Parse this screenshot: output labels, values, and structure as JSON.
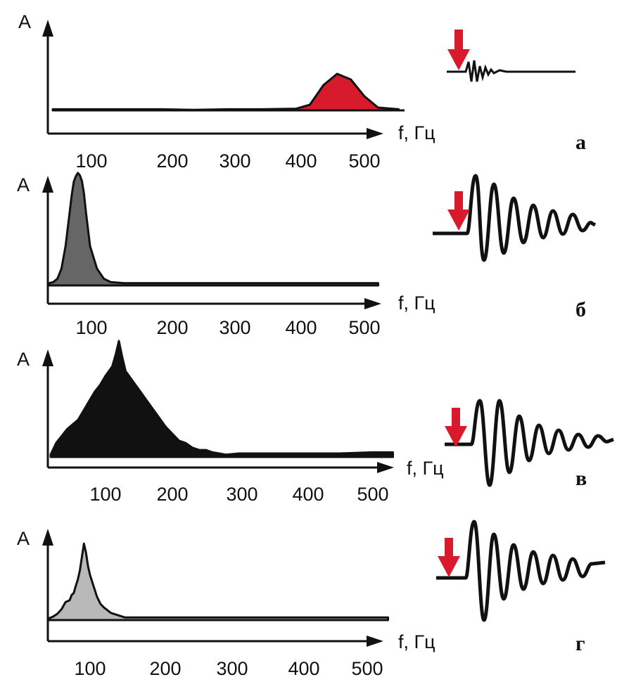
{
  "chart_data": [
    {
      "type": "area",
      "panel_label": "а",
      "ylabel": "А",
      "xlabel": "f, Гц",
      "xticks": [
        "100",
        "200",
        "300",
        "400",
        "500"
      ],
      "xlim": [
        0,
        550
      ],
      "fill_color": "#d81b2c",
      "x": [
        0,
        100,
        200,
        250,
        300,
        350,
        400,
        420,
        440,
        460,
        480,
        500,
        520,
        550
      ],
      "y": [
        0.02,
        0.02,
        0.02,
        0.01,
        0.02,
        0.02,
        0.03,
        0.1,
        0.45,
        0.65,
        0.55,
        0.25,
        0.05,
        0.02
      ]
    },
    {
      "type": "area",
      "panel_label": "б",
      "ylabel": "А",
      "xlabel": "f, Гц",
      "xticks": [
        "100",
        "200",
        "300",
        "400",
        "500"
      ],
      "xlim": [
        0,
        550
      ],
      "fill_color": "#666666",
      "x": [
        0,
        10,
        20,
        30,
        40,
        50,
        55,
        60,
        65,
        70,
        75,
        80,
        85,
        90,
        100,
        110,
        120,
        130,
        150,
        200,
        300,
        400,
        520
      ],
      "y": [
        0.02,
        0.03,
        0.06,
        0.15,
        0.35,
        0.65,
        0.8,
        0.92,
        0.97,
        1.0,
        0.98,
        0.93,
        0.82,
        0.65,
        0.35,
        0.15,
        0.06,
        0.03,
        0.02,
        0.02,
        0.02,
        0.02,
        0.02
      ]
    },
    {
      "type": "area",
      "panel_label": "в",
      "ylabel": "А",
      "xlabel": "f, Гц",
      "xticks": [
        "100",
        "200",
        "300",
        "400",
        "500"
      ],
      "xlim": [
        0,
        550
      ],
      "fill_color": "#111111",
      "x": [
        0,
        10,
        20,
        30,
        40,
        50,
        60,
        70,
        80,
        90,
        100,
        110,
        115,
        120,
        125,
        130,
        140,
        150,
        160,
        170,
        180,
        190,
        200,
        210,
        220,
        230,
        240,
        250,
        260,
        270,
        280,
        300,
        350,
        400,
        450,
        500,
        530
      ],
      "y": [
        0.02,
        0.12,
        0.18,
        0.24,
        0.28,
        0.32,
        0.4,
        0.48,
        0.56,
        0.62,
        0.7,
        0.78,
        0.88,
        1.0,
        0.86,
        0.74,
        0.66,
        0.58,
        0.5,
        0.42,
        0.34,
        0.26,
        0.2,
        0.14,
        0.12,
        0.08,
        0.06,
        0.06,
        0.04,
        0.03,
        0.02,
        0.03,
        0.03,
        0.03,
        0.03,
        0.04,
        0.04
      ]
    },
    {
      "type": "area",
      "panel_label": "г",
      "ylabel": "А",
      "xlabel": "f, Гц",
      "xticks": [
        "100",
        "200",
        "300",
        "400",
        "500"
      ],
      "xlim": [
        0,
        550
      ],
      "fill_color": "#b9b9b9",
      "x": [
        0,
        10,
        20,
        30,
        40,
        50,
        55,
        60,
        65,
        70,
        75,
        80,
        85,
        90,
        95,
        100,
        105,
        110,
        115,
        120,
        130,
        150,
        200,
        300,
        400,
        530
      ],
      "y": [
        0.02,
        0.04,
        0.07,
        0.12,
        0.2,
        0.22,
        0.28,
        0.3,
        0.38,
        0.45,
        0.55,
        0.7,
        0.85,
        0.75,
        0.6,
        0.5,
        0.38,
        0.26,
        0.18,
        0.14,
        0.08,
        0.03,
        0.03,
        0.03,
        0.03,
        0.03
      ]
    }
  ],
  "colors": {
    "ink": "#111111",
    "red_hammer": "#d81b2c"
  },
  "icons": {
    "impact": "red-hammer-arrow-icon"
  }
}
